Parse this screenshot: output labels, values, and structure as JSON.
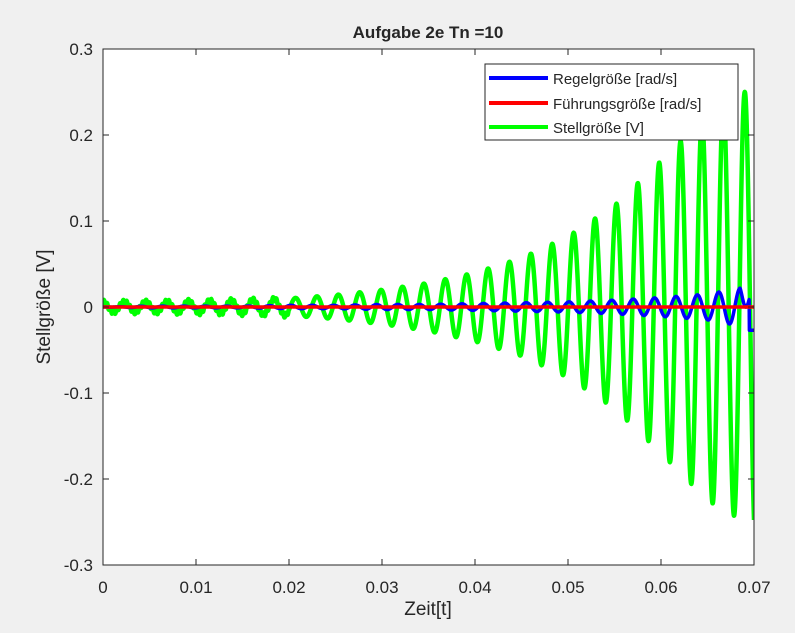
{
  "window": {
    "background": "#f0f0f0"
  },
  "chart_data": {
    "type": "line",
    "title": "Aufgabe 2e Tn =10",
    "xlabel": "Zeit[t]",
    "ylabel": "Stellgröße [V]",
    "xlim": [
      0,
      0.07
    ],
    "ylim": [
      -0.3,
      0.3
    ],
    "xticks": [
      0,
      0.01,
      0.02,
      0.03,
      0.04,
      0.05,
      0.06,
      0.07
    ],
    "xtick_labels": [
      "0",
      "0.01",
      "0.02",
      "0.03",
      "0.04",
      "0.05",
      "0.06",
      "0.07"
    ],
    "yticks": [
      -0.3,
      -0.2,
      -0.1,
      0,
      0.1,
      0.2,
      0.3
    ],
    "ytick_labels": [
      "-0.3",
      "-0.2",
      "-0.1",
      "0",
      "0.1",
      "0.2",
      "0.3"
    ],
    "grid": false,
    "legend_position": "top-right",
    "series": [
      {
        "name": "Regelgröße [rad/s]",
        "color": "#0000ff",
        "x": [
          0,
          0.005,
          0.01,
          0.015,
          0.02,
          0.025,
          0.03,
          0.035,
          0.04,
          0.045,
          0.05,
          0.055,
          0.06,
          0.065,
          0.0685,
          0.07
        ],
        "y": [
          0,
          0.001,
          0.001,
          0.001,
          0.002,
          0.002,
          0.003,
          0.003,
          0.004,
          0.005,
          0.006,
          0.008,
          0.011,
          0.015,
          0.022,
          -0.027
        ],
        "shape": "oscillation envelope (amplitude), ~1 cycle per 0.0023 s"
      },
      {
        "name": "Führungsgröße [rad/s]",
        "color": "#ff0000",
        "x": [
          0,
          0.07
        ],
        "y": [
          0,
          0
        ]
      },
      {
        "name": "Stellgröße [V]",
        "color": "#00ff00",
        "x": [
          0,
          0.005,
          0.01,
          0.015,
          0.02,
          0.025,
          0.03,
          0.035,
          0.04,
          0.045,
          0.05,
          0.055,
          0.06,
          0.065,
          0.069,
          0.07
        ],
        "y": [
          0.006,
          0.006,
          0.007,
          0.008,
          0.01,
          0.014,
          0.02,
          0.028,
          0.04,
          0.057,
          0.082,
          0.118,
          0.17,
          0.225,
          0.25,
          0.27
        ],
        "shape": "oscillation envelope (amplitude), ~1 cycle per 0.0023 s"
      }
    ]
  }
}
